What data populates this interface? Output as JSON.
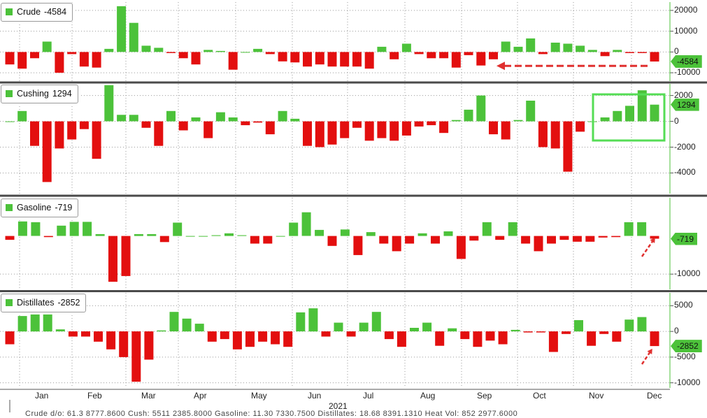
{
  "chart_data": [
    {
      "type": "bar",
      "name": "Crude",
      "legend_value": "-4584",
      "last_value_tag": "-4584",
      "ylim": [
        -14000,
        24000
      ],
      "yticks": [
        20000,
        10000,
        0,
        -10000
      ],
      "values": [
        -6000,
        -8000,
        -3000,
        5000,
        -10000,
        -1000,
        -7000,
        -7500,
        1500,
        22000,
        14000,
        3000,
        2000,
        -500,
        -3000,
        -6000,
        1000,
        500,
        -8500,
        0,
        1500,
        -1000,
        -4500,
        -5000,
        -7000,
        -6000,
        -7000,
        -7000,
        -7000,
        -8000,
        2500,
        -3500,
        4000,
        -1000,
        -3000,
        -3000,
        -7500,
        -1500,
        -6500,
        -3500,
        5000,
        2500,
        6500,
        -1000,
        4500,
        4000,
        3000,
        1000,
        -2000,
        1000,
        -500,
        -500,
        -4584
      ],
      "annotations": [
        "dashed arrow pointing left at latest value"
      ]
    },
    {
      "type": "bar",
      "name": "Cushing",
      "legend_value": "1294",
      "last_value_tag": "1294",
      "ylim": [
        -5600,
        2900
      ],
      "yticks": [
        2000,
        0,
        -2000,
        -4000
      ],
      "values": [
        0,
        800,
        -1900,
        -4700,
        -2100,
        -1400,
        -600,
        -2900,
        2800,
        500,
        500,
        -500,
        -1900,
        800,
        -700,
        300,
        -1300,
        700,
        300,
        -300,
        -100,
        -1000,
        800,
        200,
        -1900,
        -2000,
        -1800,
        -1300,
        -500,
        -1500,
        -1300,
        -1500,
        -1100,
        -400,
        -300,
        -900,
        100,
        900,
        2000,
        -1000,
        -1400,
        100,
        1600,
        -2000,
        -2100,
        -3900,
        -800,
        0,
        300,
        800,
        1200,
        2400,
        1294
      ],
      "annotations": [
        "highlight box around last six weeks"
      ]
    },
    {
      "type": "bar",
      "name": "Gasoline",
      "legend_value": "-719",
      "last_value_tag": "-719",
      "ylim": [
        -14000,
        10000
      ],
      "yticks": [
        -10000
      ],
      "values": [
        -1000,
        3800,
        3600,
        -300,
        2700,
        3700,
        3700,
        500,
        -12000,
        -10500,
        500,
        500,
        -1600,
        3500,
        0,
        0,
        200,
        700,
        200,
        -2000,
        -2000,
        0,
        3500,
        6200,
        1600,
        -2600,
        1700,
        -5000,
        1000,
        -2000,
        -4000,
        -2000,
        700,
        -2000,
        1200,
        -6000,
        -1200,
        3600,
        -1000,
        3600,
        -2000,
        -4000,
        -2000,
        -1000,
        -1500,
        -1500,
        -400,
        -300,
        3600,
        3600,
        -719
      ]
    },
    {
      "type": "bar",
      "name": "Distillates",
      "legend_value": "-2852",
      "last_value_tag": "-2852",
      "ylim": [
        -11000,
        7500
      ],
      "yticks": [
        5000,
        0,
        -5000,
        -10000
      ],
      "values": [
        -2500,
        3000,
        3300,
        3300,
        400,
        -1000,
        -1000,
        -2000,
        -3500,
        -5000,
        -9800,
        -5500,
        200,
        3800,
        2500,
        1500,
        -2000,
        -1500,
        -3500,
        -3000,
        -2000,
        -2500,
        -3000,
        3700,
        4500,
        -1000,
        1700,
        -1000,
        1700,
        3800,
        -1500,
        -3000,
        700,
        1700,
        -2800,
        600,
        -1500,
        -3000,
        -1800,
        -2500,
        300,
        -200,
        -200,
        -4000,
        -500,
        2200,
        -2800,
        -500,
        -2000,
        2300,
        2800,
        -2852
      ]
    }
  ],
  "x_axis": {
    "months": [
      "Jan",
      "Feb",
      "Mar",
      "Apr",
      "May",
      "Jun",
      "Jul",
      "Aug",
      "Sep",
      "Oct",
      "Nov",
      "Dec"
    ],
    "year": "2021"
  },
  "colors": {
    "positive": "#4cc23a",
    "negative": "#e30f0f",
    "annotation_red": "#e0302f",
    "highlight_box": "#55dd55",
    "grid": "#9a9a9a",
    "separator": "#4a4a4a"
  },
  "footer_text": "Crude d/o: 61.3 8777.8600 Cush: 5511 2385.8000 Gasoline: 11.30 7330.7500 Distillates: 18.68 8391.1310 Heat Vol: 852 2977.6000"
}
